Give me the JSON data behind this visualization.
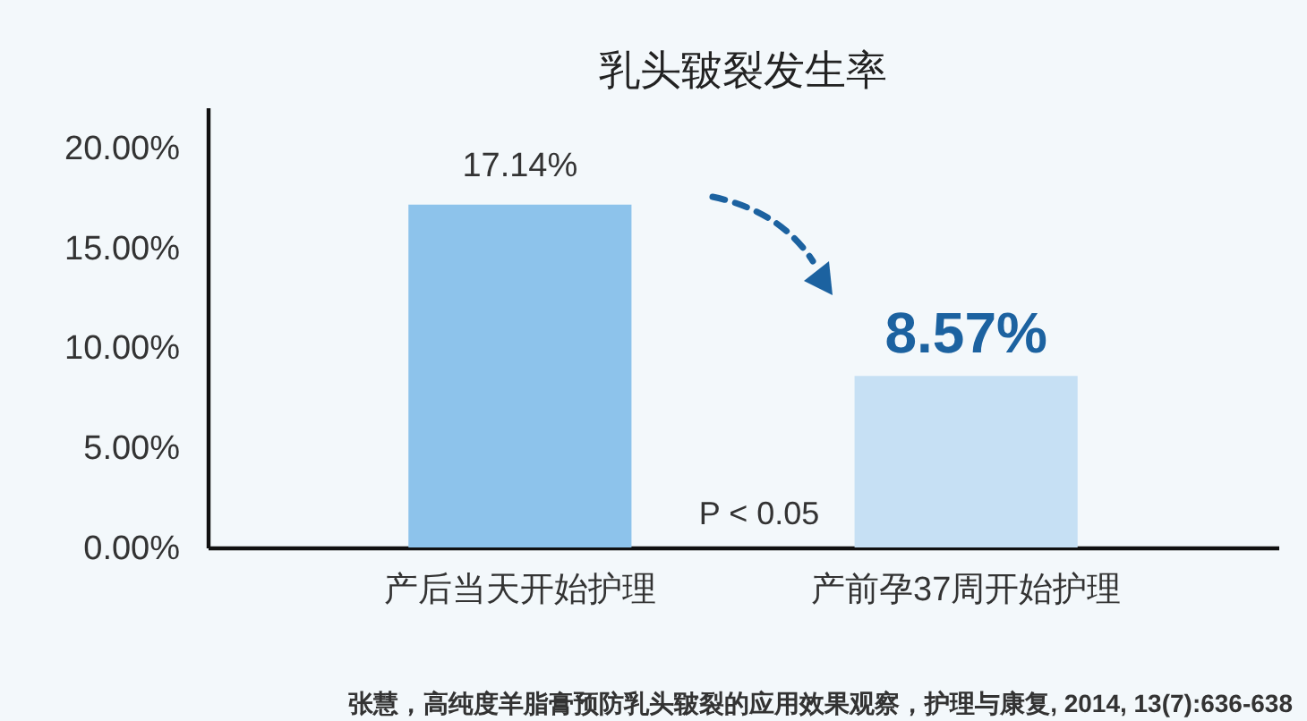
{
  "chart_data": {
    "type": "bar",
    "title": "乳头皲裂发生率",
    "categories": [
      "产后当天开始护理",
      "产前孕37周开始护理"
    ],
    "values": [
      17.14,
      8.57
    ],
    "colors": [
      "#8dc3eb",
      "#c6e0f4"
    ],
    "value_labels": [
      "17.14%",
      "8.57%"
    ],
    "ylim": [
      0,
      22
    ],
    "yticks": [
      {
        "value": 0,
        "label": "0.00%"
      },
      {
        "value": 5,
        "label": "5.00%"
      },
      {
        "value": 10,
        "label": "10.00%"
      },
      {
        "value": 15,
        "label": "15.00%"
      },
      {
        "value": 20,
        "label": "20.00%"
      }
    ],
    "annotations": [
      "P < 0.05",
      "张慧，高纯度羊脂膏预防乳头皲裂的应用效果观察，护理与康复, 2014, 13(7):636-638"
    ]
  }
}
